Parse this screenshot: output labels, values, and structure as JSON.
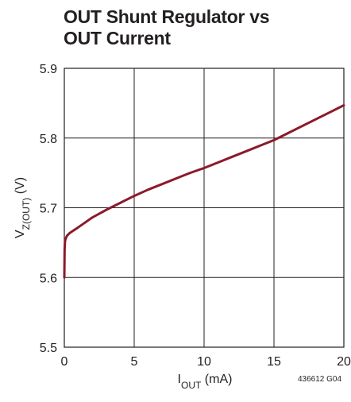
{
  "chart_data": {
    "type": "line",
    "title_lines": [
      "OUT Shunt Regulator vs",
      "OUT Current"
    ],
    "xlabel": {
      "main": "I",
      "sub": "OUT",
      "unit": " (mA)"
    },
    "ylabel": {
      "main": "V",
      "sub": "Z(OUT)",
      "unit": " (V)"
    },
    "xlim": [
      0,
      20
    ],
    "ylim": [
      5.5,
      5.9
    ],
    "xticks": [
      "0",
      "5",
      "10",
      "15",
      "20"
    ],
    "yticks": [
      "5.5",
      "5.6",
      "5.7",
      "5.8",
      "5.9"
    ],
    "grid": true,
    "series_color": "#8b1a2b",
    "series": [
      {
        "x": [
          0,
          0.02,
          0.05,
          0.1,
          0.2,
          0.4,
          0.7,
          1,
          1.5,
          2,
          3,
          4,
          5,
          6,
          7,
          8,
          9,
          10,
          11,
          12,
          13,
          14,
          15,
          16,
          17,
          18,
          19,
          20
        ],
        "y": [
          5.6,
          5.64,
          5.652,
          5.656,
          5.66,
          5.664,
          5.668,
          5.672,
          5.679,
          5.686,
          5.697,
          5.707,
          5.717,
          5.726,
          5.734,
          5.742,
          5.75,
          5.757,
          5.765,
          5.773,
          5.781,
          5.789,
          5.797,
          5.807,
          5.817,
          5.827,
          5.837,
          5.847
        ]
      }
    ],
    "footnote": "436612 G04"
  }
}
